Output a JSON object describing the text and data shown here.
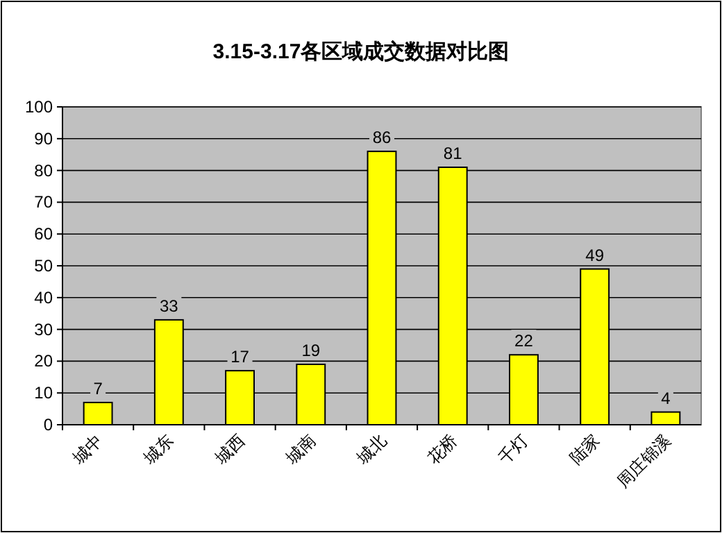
{
  "chart_data": {
    "type": "bar",
    "title": "3.15-3.17各区域成交数据对比图",
    "categories": [
      "城中",
      "城东",
      "城西",
      "城南",
      "城北",
      "花桥",
      "千灯",
      "陆家",
      "周庄锦溪"
    ],
    "values": [
      7,
      33,
      17,
      19,
      86,
      81,
      22,
      49,
      4
    ],
    "color": "#ffff00",
    "ylim": [
      0,
      100
    ],
    "yticks": [
      0,
      10,
      20,
      30,
      40,
      50,
      60,
      70,
      80,
      90,
      100
    ],
    "grid": "y",
    "data_labels": true
  }
}
